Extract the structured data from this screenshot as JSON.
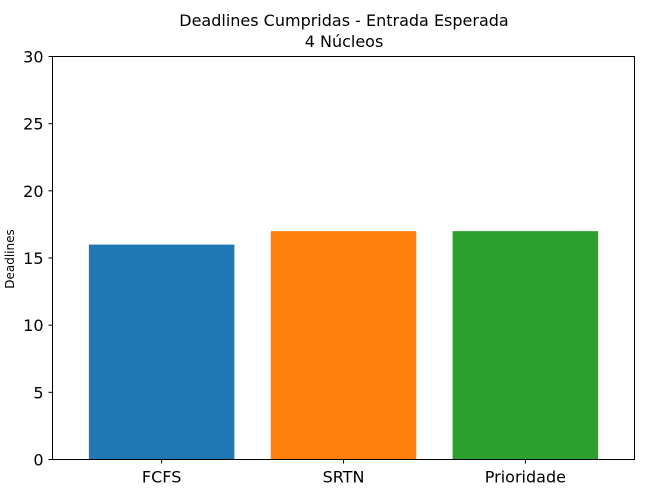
{
  "chart_data": {
    "type": "bar",
    "title": "Deadlines Cumpridas - Entrada Esperada",
    "subtitle": "4 Núcleos",
    "xlabel": "",
    "ylabel": "Deadlines",
    "categories": [
      "FCFS",
      "SRTN",
      "Prioridade"
    ],
    "values": [
      16,
      17,
      17
    ],
    "colors": [
      "#1f77b4",
      "#ff7f0e",
      "#2ca02c"
    ],
    "ylim": [
      0,
      30
    ],
    "yticks": [
      "0",
      "5",
      "10",
      "15",
      "20",
      "25",
      "30"
    ],
    "grid": false,
    "legend": "none"
  }
}
